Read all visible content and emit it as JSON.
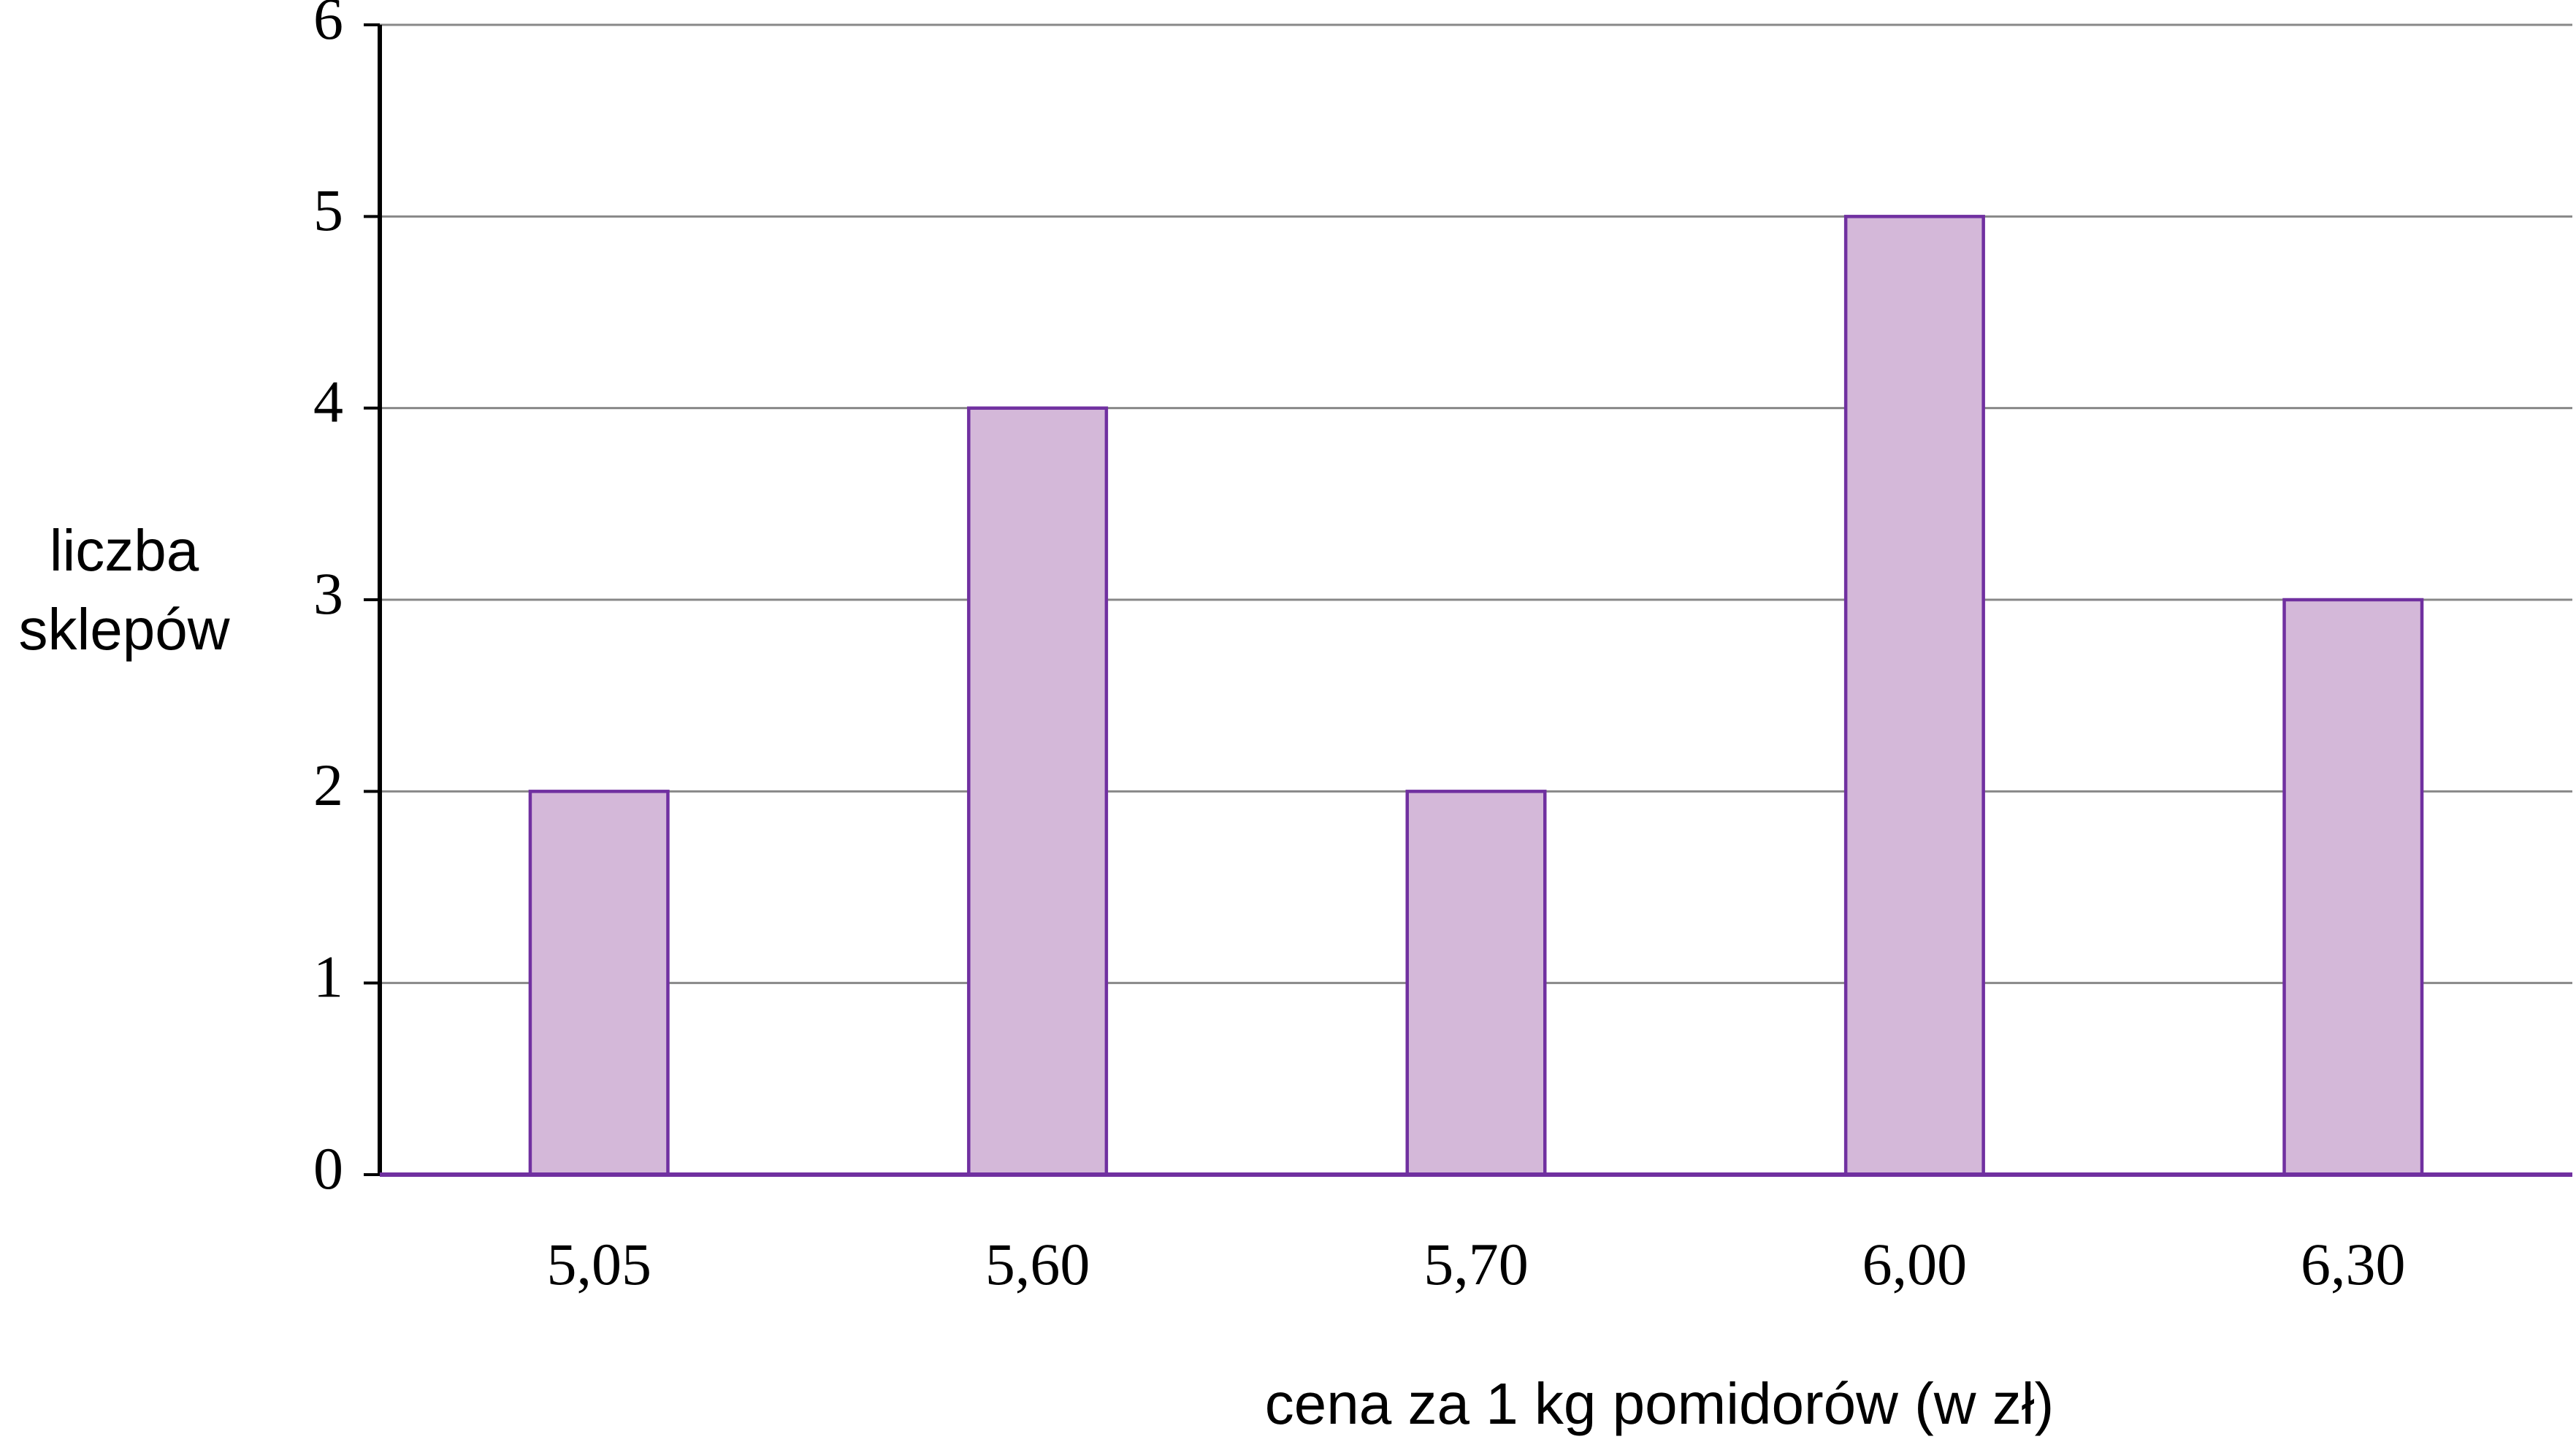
{
  "chart_data": {
    "type": "bar",
    "ylabel": "liczba sklepów",
    "xlabel": "cena za 1 kg pomidorów (w zł)",
    "categories": [
      "5,05",
      "5,60",
      "5,70",
      "6,00",
      "6,30"
    ],
    "values": [
      2,
      4,
      2,
      5,
      3
    ],
    "color": "#d4b8d9",
    "edge_color": "#7030a0",
    "ylim": [
      0,
      6
    ],
    "yticks": [
      0,
      1,
      2,
      3,
      4,
      5,
      6
    ],
    "grid": true
  }
}
